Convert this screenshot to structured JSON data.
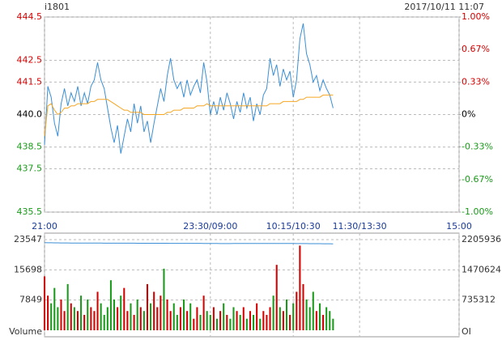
{
  "chart_data": [
    {
      "type": "line",
      "symbol": "i1801",
      "timestamp": "2017/10/11 11:07",
      "xlim": [
        0,
        375
      ],
      "xticks": [
        {
          "value": 0,
          "label": "21:00"
        },
        {
          "value": 150,
          "label": "23:30/09:00"
        },
        {
          "value": 225,
          "label": "10:15/10:30"
        },
        {
          "value": 285,
          "label": "11:30/13:30"
        },
        {
          "value": 375,
          "label": "15:00"
        }
      ],
      "ylim": [
        435.5,
        444.5
      ],
      "yticks": [
        435.5,
        437.5,
        438.5,
        {
          "value": 440,
          "label": "440.0"
        },
        441.5,
        442.5,
        444.5
      ],
      "y2lim": [
        -1,
        1
      ],
      "y2ticks": [
        {
          "value": -1,
          "label": "-1.00%"
        },
        {
          "value": -0.67,
          "label": "-0.67%"
        },
        {
          "value": -0.33,
          "label": "-0.33%"
        },
        {
          "value": 0,
          "label": "0%"
        },
        {
          "value": 0.33,
          "label": "0.33%"
        },
        {
          "value": 0.67,
          "label": "0.67%"
        },
        {
          "value": 1,
          "label": "1.00%"
        }
      ],
      "up_color": "#d40000",
      "down_color": "#1a9a1a",
      "flat_color": "#000000",
      "grid": true,
      "x": [
        0,
        3,
        6,
        9,
        12,
        15,
        18,
        21,
        24,
        27,
        30,
        33,
        36,
        39,
        42,
        45,
        48,
        51,
        54,
        57,
        60,
        63,
        66,
        69,
        72,
        75,
        78,
        81,
        84,
        87,
        90,
        93,
        96,
        99,
        102,
        105,
        108,
        111,
        114,
        117,
        120,
        123,
        126,
        129,
        132,
        135,
        138,
        141,
        144,
        147,
        150,
        153,
        156,
        159,
        162,
        165,
        168,
        171,
        174,
        177,
        180,
        183,
        186,
        189,
        192,
        195,
        198,
        201,
        204,
        207,
        210,
        213,
        216,
        219,
        222,
        225,
        228,
        231,
        234,
        237,
        240,
        243,
        246,
        249,
        252,
        255,
        258,
        261
      ],
      "series": [
        {
          "name": "price",
          "color": "#3b8fd6",
          "values": [
            438.6,
            441.3,
            440.8,
            439.6,
            439.0,
            440.5,
            441.2,
            440.4,
            441.0,
            440.6,
            441.3,
            440.4,
            441.0,
            440.5,
            441.3,
            441.6,
            442.4,
            441.6,
            441.2,
            440.3,
            439.4,
            438.7,
            439.5,
            438.2,
            439.0,
            439.8,
            439.2,
            440.5,
            439.6,
            440.4,
            439.2,
            439.7,
            438.7,
            439.6,
            440.4,
            441.2,
            440.6,
            441.8,
            442.6,
            441.6,
            441.2,
            441.5,
            440.8,
            441.6,
            440.9,
            441.3,
            441.6,
            441.0,
            442.4,
            441.5,
            440.0,
            440.6,
            440.0,
            440.8,
            440.2,
            441.0,
            440.5,
            439.8,
            440.6,
            440.1,
            441.0,
            440.3,
            440.8,
            439.7,
            440.5,
            440.0,
            440.9,
            441.2,
            442.6,
            441.8,
            442.3,
            441.3,
            442.1,
            441.6,
            442.0,
            440.8,
            441.6,
            443.5,
            444.2,
            442.8,
            442.3,
            441.5,
            441.8,
            441.1,
            441.6,
            441.2,
            440.9,
            440.3
          ]
        },
        {
          "name": "average",
          "color": "#f5a623",
          "values": [
            439.0,
            440.4,
            440.5,
            440.2,
            440.0,
            440.1,
            440.3,
            440.3,
            440.4,
            440.4,
            440.5,
            440.5,
            440.5,
            440.5,
            440.6,
            440.6,
            440.7,
            440.7,
            440.7,
            440.7,
            440.6,
            440.5,
            440.4,
            440.3,
            440.2,
            440.2,
            440.1,
            440.1,
            440.1,
            440.1,
            440.0,
            440.0,
            440.0,
            440.0,
            440.0,
            440.0,
            440.0,
            440.1,
            440.1,
            440.2,
            440.2,
            440.2,
            440.3,
            440.3,
            440.3,
            440.3,
            440.4,
            440.4,
            440.4,
            440.5,
            440.4,
            440.4,
            440.4,
            440.4,
            440.4,
            440.4,
            440.4,
            440.4,
            440.4,
            440.4,
            440.4,
            440.4,
            440.4,
            440.4,
            440.4,
            440.4,
            440.4,
            440.4,
            440.5,
            440.5,
            440.5,
            440.5,
            440.6,
            440.6,
            440.6,
            440.6,
            440.6,
            440.7,
            440.7,
            440.8,
            440.8,
            440.8,
            440.8,
            440.8,
            440.9,
            440.9,
            440.9,
            440.9
          ]
        }
      ]
    },
    {
      "type": "bar",
      "y_label": "Volume",
      "y2_label": "OI",
      "xlim": [
        0,
        375
      ],
      "ylim": [
        0,
        23547
      ],
      "yticks": [
        7849,
        15698,
        23547
      ],
      "y2lim": [
        0,
        2205936
      ],
      "y2ticks": [
        735312,
        1470624,
        2205936
      ],
      "grid": true,
      "x": [
        0,
        3,
        6,
        9,
        12,
        15,
        18,
        21,
        24,
        27,
        30,
        33,
        36,
        39,
        42,
        45,
        48,
        51,
        54,
        57,
        60,
        63,
        66,
        69,
        72,
        75,
        78,
        81,
        84,
        87,
        90,
        93,
        96,
        99,
        102,
        105,
        108,
        111,
        114,
        117,
        120,
        123,
        126,
        129,
        132,
        135,
        138,
        141,
        144,
        147,
        150,
        153,
        156,
        159,
        162,
        165,
        168,
        171,
        174,
        177,
        180,
        183,
        186,
        189,
        192,
        195,
        198,
        201,
        204,
        207,
        210,
        213,
        216,
        219,
        222,
        225,
        228,
        231,
        234,
        237,
        240,
        243,
        246,
        249,
        252,
        255,
        258,
        261
      ],
      "series": [
        {
          "name": "volume",
          "values": [
            14000,
            9000,
            7000,
            11000,
            6000,
            8000,
            5000,
            12000,
            7000,
            6000,
            5000,
            9000,
            4000,
            8000,
            6000,
            5000,
            10000,
            7000,
            4000,
            6000,
            13000,
            8000,
            6000,
            9000,
            11000,
            5000,
            7000,
            4000,
            8000,
            6000,
            5000,
            12000,
            7000,
            10000,
            6000,
            9000,
            16000,
            8000,
            5000,
            7000,
            4000,
            6000,
            8000,
            5000,
            7000,
            3000,
            6000,
            4000,
            9000,
            5000,
            4000,
            6000,
            3000,
            5000,
            7000,
            4000,
            3000,
            6000,
            5000,
            4000,
            6000,
            3000,
            5000,
            4000,
            7000,
            3000,
            5000,
            4000,
            6000,
            9000,
            17000,
            6000,
            5000,
            8000,
            4000,
            7000,
            10000,
            22000,
            12000,
            8000,
            6000,
            10000,
            5000,
            7000,
            4000,
            6000,
            5000,
            3000
          ]
        },
        {
          "name": "open-interest",
          "axis": "y2",
          "color": "#3b8fd6",
          "values": [
            2132000,
            2130000,
            2128500,
            2127500,
            2126500,
            2125500,
            2125000,
            2124500,
            2124000,
            2123500,
            2123000,
            2122500,
            2122000,
            2121500,
            2121000,
            2120800,
            2120600,
            2120400,
            2120200,
            2120000,
            2119800,
            2119600,
            2119400,
            2119200,
            2119000,
            2118800,
            2118600,
            2118400,
            2118200,
            2118000,
            2117800,
            2117600,
            2117400,
            2117200,
            2117000,
            2116800,
            2116600,
            2116400,
            2116200,
            2116000,
            2115800,
            2115600,
            2115400,
            2115200,
            2115000,
            2114800,
            2114600,
            2114400,
            2114200,
            2114000,
            2112000,
            2111000,
            2110500,
            2110000,
            2110000,
            2110200,
            2110400,
            2110600,
            2110800,
            2111000,
            2111200,
            2111400,
            2111600,
            2111800,
            2112000,
            2112200,
            2112400,
            2112600,
            2112800,
            2113000,
            2113000,
            2112500,
            2112000,
            2111500,
            2111000,
            2110500,
            2110000,
            2109500,
            2109000,
            2108500,
            2108000,
            2107500,
            2107000,
            2106500,
            2106000,
            2105500,
            2105000,
            2104500
          ]
        }
      ]
    }
  ]
}
